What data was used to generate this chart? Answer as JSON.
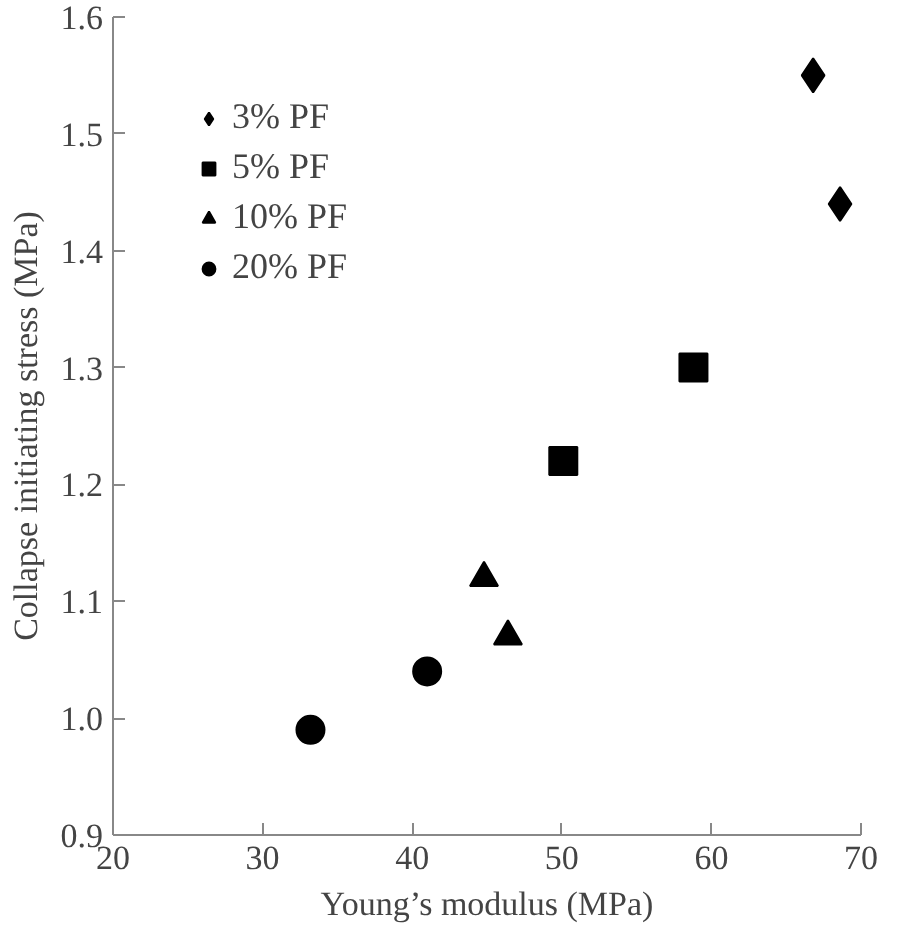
{
  "chart_data": {
    "type": "scatter",
    "xlabel": "Young’s modulus (MPa)",
    "ylabel": "Collapse initiating stress (MPa)",
    "xlim": [
      20,
      70
    ],
    "xticks": [
      20,
      30,
      40,
      50,
      60,
      70
    ],
    "ylim": [
      0.9,
      1.6
    ],
    "yticks": [
      0.9,
      {
        "value": 1,
        "label": "1.0"
      },
      1.1,
      1.2,
      1.3,
      1.4,
      1.5,
      1.6
    ],
    "grid": false,
    "legend": "left",
    "series": [
      {
        "name": "3% PF",
        "color": "#000000",
        "marker": "diamond",
        "x": [
          66.8,
          68.6
        ],
        "values": [
          1.55,
          1.44
        ]
      },
      {
        "name": "5% PF",
        "color": "#000000",
        "marker": "square",
        "x": [
          50.1,
          58.8
        ],
        "values": [
          1.22,
          1.3
        ]
      },
      {
        "name": "10% PF",
        "color": "#000000",
        "marker": "triangle",
        "x": [
          44.8,
          46.4
        ],
        "values": [
          1.12,
          1.07
        ]
      },
      {
        "name": "20% PF",
        "color": "#000000",
        "marker": "circle",
        "x": [
          33.2,
          41.0
        ],
        "values": [
          0.99,
          1.04
        ]
      }
    ]
  }
}
